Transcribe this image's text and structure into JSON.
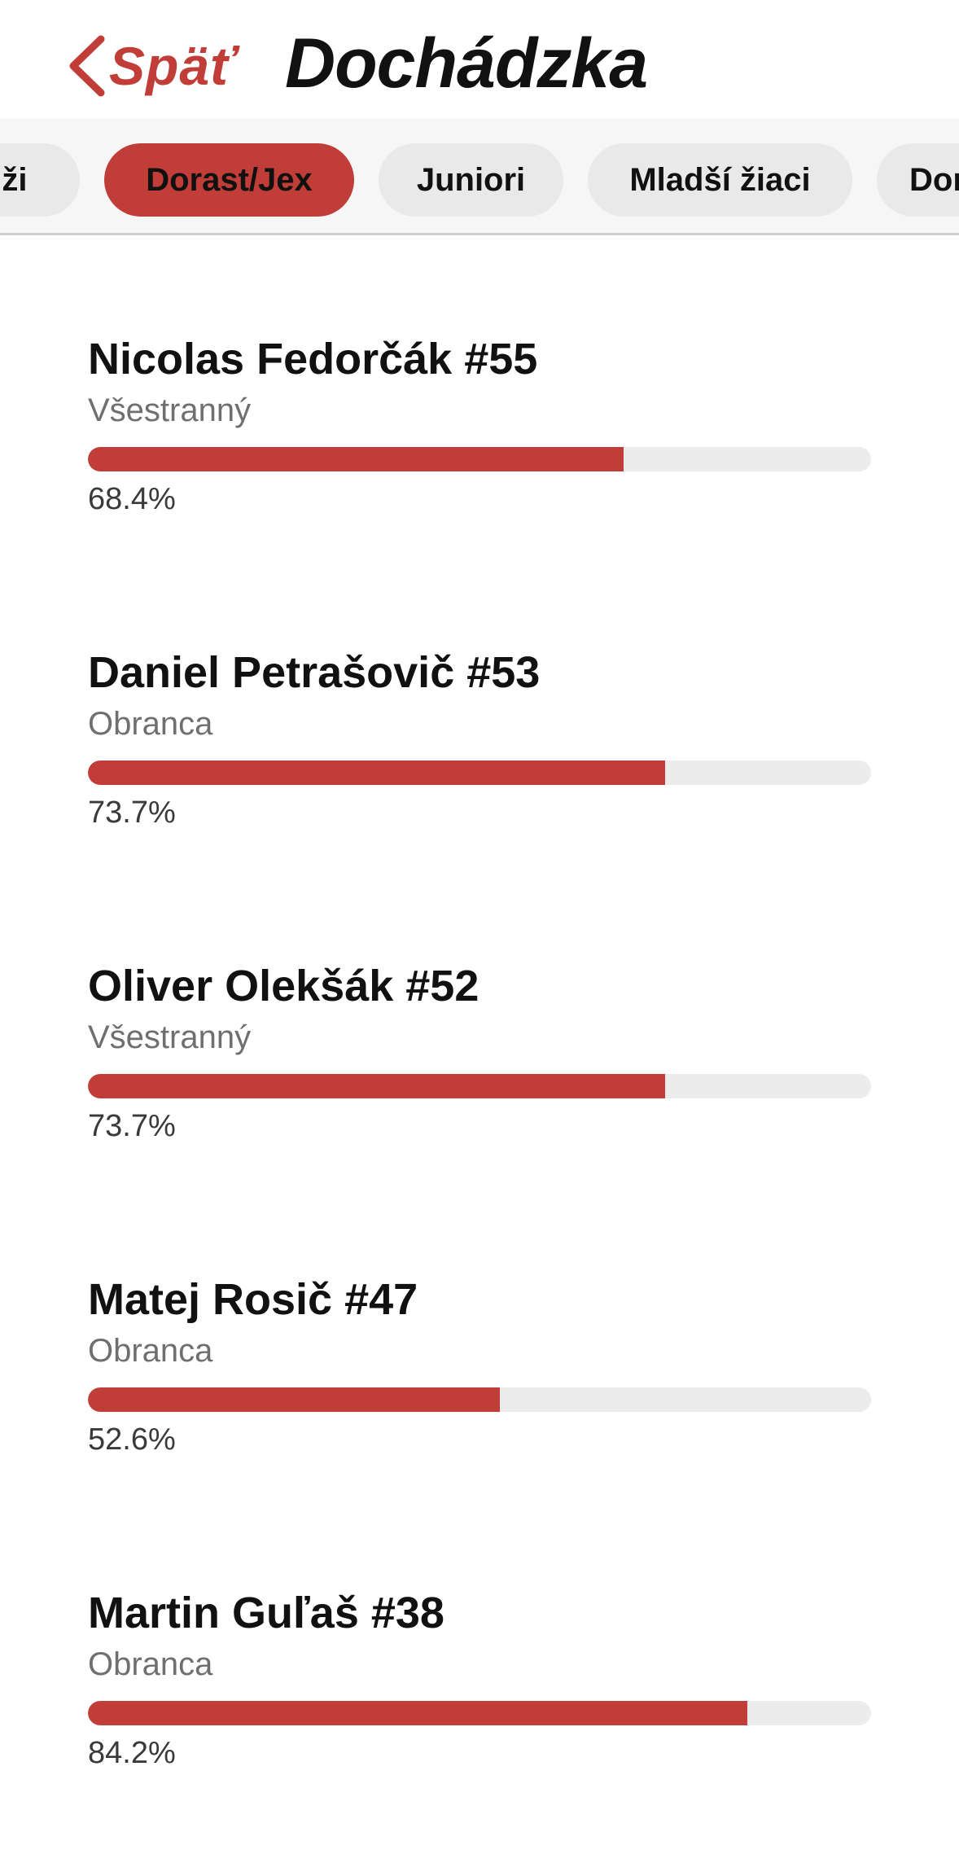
{
  "header": {
    "back_label": "Späť",
    "title": "Dochádzka"
  },
  "tabs": [
    {
      "label": "Muži",
      "active": false
    },
    {
      "label": "Dorast/Jex",
      "active": true
    },
    {
      "label": "Juniori",
      "active": false
    },
    {
      "label": "Mladší žiaci",
      "active": false
    },
    {
      "label": "Dorastenky",
      "active": false
    }
  ],
  "players": [
    {
      "name": "Nicolas Fedorčák #55",
      "position": "Všestranný",
      "percent_label": "68.4%",
      "attendance": 68.4
    },
    {
      "name": "Daniel Petrašovič #53",
      "position": "Obranca",
      "percent_label": "73.7%",
      "attendance": 73.7
    },
    {
      "name": "Oliver Olekšák #52",
      "position": "Všestranný",
      "percent_label": "73.7%",
      "attendance": 73.7
    },
    {
      "name": "Matej Rosič #47",
      "position": "Obranca",
      "percent_label": "52.6%",
      "attendance": 52.6
    },
    {
      "name": "Martin Guľaš #38",
      "position": "Obranca",
      "percent_label": "84.2%",
      "attendance": 84.2
    }
  ],
  "colors": {
    "accent": "#c13d37",
    "track": "#ececec",
    "secondary_text": "#6f6f6f"
  }
}
